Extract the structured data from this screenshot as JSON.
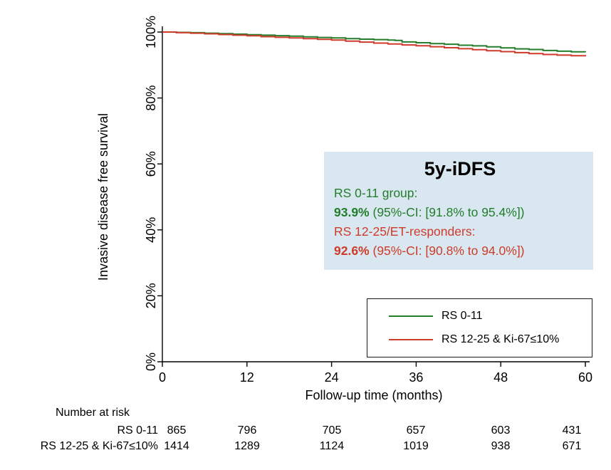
{
  "chart_data": {
    "type": "line",
    "subtype": "kaplan-meier-step",
    "title": "",
    "xlabel": "Follow-up time (months)",
    "ylabel": "Invasive disease free survival",
    "xlim": [
      0,
      60
    ],
    "ylim": [
      0,
      100
    ],
    "xticks": [
      0,
      12,
      24,
      36,
      48,
      60
    ],
    "yticks": [
      0,
      20,
      40,
      60,
      80,
      100
    ],
    "ytick_suffix": "%",
    "grid": false,
    "legend_position": "inside-bottom-right",
    "series": [
      {
        "name": "RS 0-11",
        "color": "#237d2b",
        "points": [
          [
            0,
            100
          ],
          [
            2,
            99.9
          ],
          [
            4,
            99.8
          ],
          [
            6,
            99.65
          ],
          [
            8,
            99.5
          ],
          [
            10,
            99.35
          ],
          [
            12,
            99.2
          ],
          [
            14,
            99.05
          ],
          [
            16,
            98.9
          ],
          [
            18,
            98.75
          ],
          [
            20,
            98.55
          ],
          [
            22,
            98.35
          ],
          [
            24,
            98.2
          ],
          [
            26,
            98.0
          ],
          [
            28,
            97.85
          ],
          [
            30,
            97.7
          ],
          [
            32,
            97.55
          ],
          [
            33,
            97.45
          ],
          [
            34,
            97.0
          ],
          [
            36,
            96.75
          ],
          [
            38,
            96.5
          ],
          [
            40,
            96.3
          ],
          [
            42,
            96.0
          ],
          [
            44,
            95.8
          ],
          [
            46,
            95.5
          ],
          [
            48,
            95.2
          ],
          [
            50,
            94.9
          ],
          [
            52,
            94.7
          ],
          [
            54,
            94.4
          ],
          [
            56,
            94.2
          ],
          [
            58,
            94.0
          ],
          [
            60,
            93.9
          ]
        ]
      },
      {
        "name": "RS 12-25 & Ki-67≤10%",
        "color": "#cf3b2a",
        "points": [
          [
            0,
            100
          ],
          [
            2,
            99.8
          ],
          [
            4,
            99.65
          ],
          [
            6,
            99.45
          ],
          [
            8,
            99.25
          ],
          [
            10,
            99.05
          ],
          [
            12,
            98.85
          ],
          [
            14,
            98.6
          ],
          [
            16,
            98.4
          ],
          [
            18,
            98.2
          ],
          [
            20,
            98.0
          ],
          [
            22,
            97.8
          ],
          [
            24,
            97.55
          ],
          [
            26,
            97.25
          ],
          [
            28,
            96.95
          ],
          [
            30,
            96.65
          ],
          [
            32,
            96.4
          ],
          [
            34,
            96.1
          ],
          [
            36,
            95.85
          ],
          [
            38,
            95.55
          ],
          [
            40,
            95.25
          ],
          [
            42,
            94.95
          ],
          [
            44,
            94.65
          ],
          [
            46,
            94.35
          ],
          [
            48,
            94.05
          ],
          [
            50,
            93.75
          ],
          [
            52,
            93.45
          ],
          [
            54,
            93.2
          ],
          [
            56,
            93.0
          ],
          [
            58,
            92.8
          ],
          [
            60,
            92.6
          ]
        ]
      }
    ]
  },
  "annotation": {
    "title": "5y-iDFS",
    "bg": "#d8e7f0",
    "lines": [
      {
        "label": "RS 0-11 group:",
        "value": "93.9%",
        "ci": " (95%-CI: [91.8% to 95.4%])",
        "color": "#237d2b"
      },
      {
        "label": "RS 12-25/ET-responders:",
        "value": "92.6%",
        "ci": " (95%-CI: [90.8% to 94.0%])",
        "color": "#cf3b2a"
      }
    ]
  },
  "legend": {
    "items": [
      {
        "label": "RS 0-11",
        "color": "#237d2b"
      },
      {
        "label": "RS 12-25 & Ki-67≤10%",
        "color": "#cf3b2a"
      }
    ]
  },
  "risk_table": {
    "title": "Number at risk",
    "rows": [
      {
        "label": "RS 0-11",
        "values": [
          865,
          796,
          705,
          657,
          603,
          431
        ]
      },
      {
        "label": "RS 12-25 & Ki-67≤10%",
        "values": [
          1414,
          1289,
          1124,
          1019,
          938,
          671
        ]
      }
    ]
  }
}
